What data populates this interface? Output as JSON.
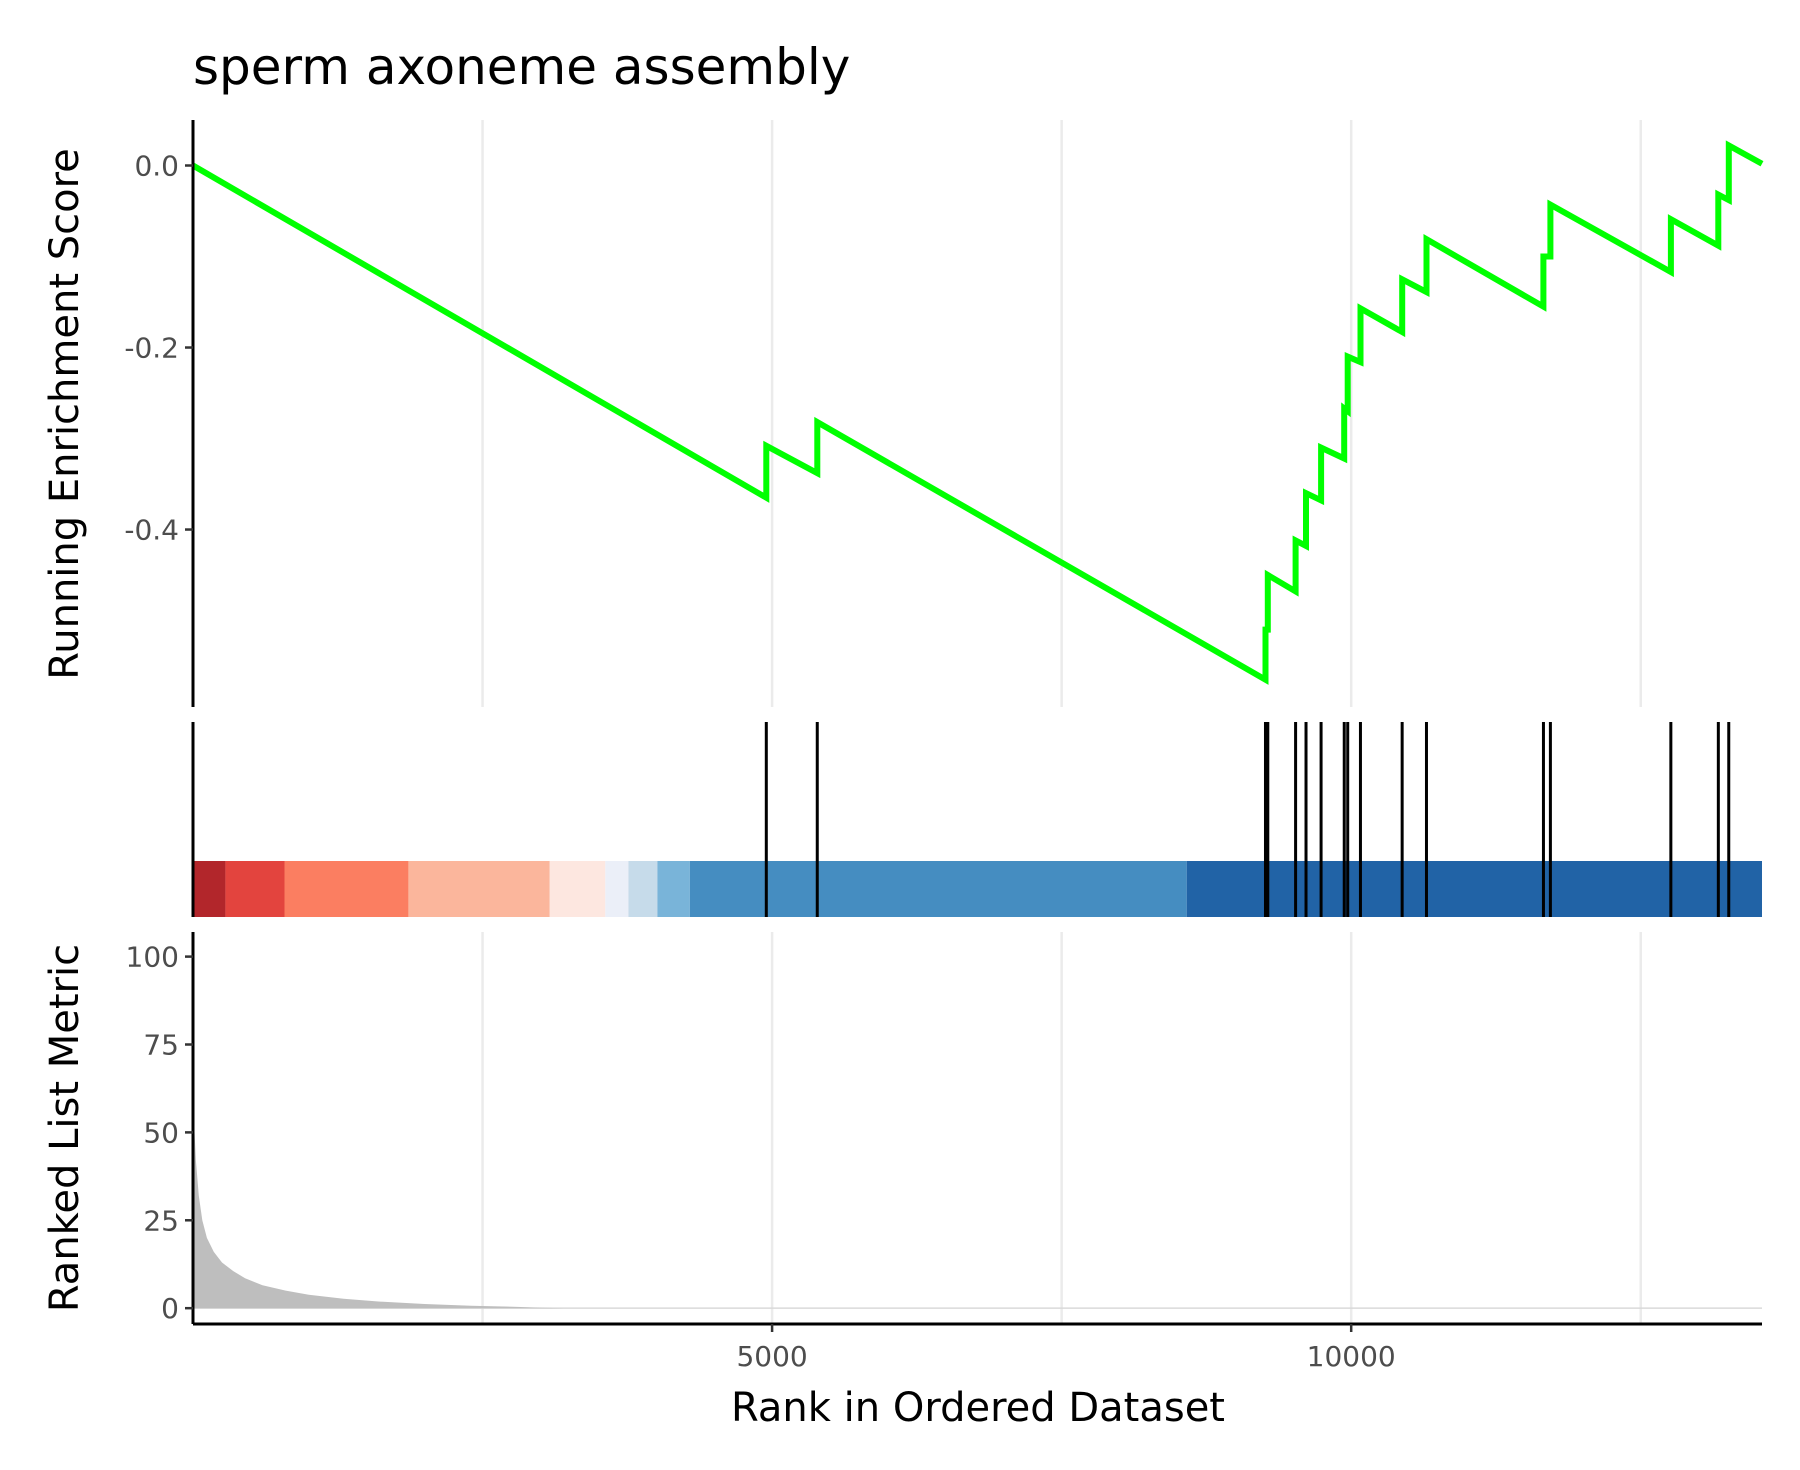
{
  "chart_data": {
    "type": "line",
    "title": "sperm axoneme assembly",
    "xlabel": "Rank in Ordered Dataset",
    "xlim": [
      0,
      13547
    ],
    "x_ticks": [
      5000,
      10000
    ],
    "x_tick_labels": [
      "5000",
      "10000"
    ],
    "grid": "vertical major",
    "panels": [
      {
        "name": "running_enrichment",
        "ylabel": "Running Enrichment Score",
        "ylim": [
          -0.595,
          0.05
        ],
        "y_ticks": [
          0.0,
          -0.2,
          -0.4
        ],
        "y_tick_labels": [
          "0.0",
          "-0.2",
          "-0.4"
        ],
        "line_color": "#00ff00",
        "series": [
          {
            "x": [
              0,
              4950,
              4950,
              5390,
              5390,
              9260,
              9260,
              9280,
              9280,
              9520,
              9520,
              9610,
              9610,
              9740,
              9740,
              9940,
              9940,
              9970,
              9970,
              10080,
              10080,
              10440,
              10440,
              10650,
              10650,
              11660,
              11660,
              11720,
              11720,
              12760,
              12760,
              13170,
              13170,
              13260,
              13260,
              13547
            ],
            "y": [
              0.0,
              -0.365,
              -0.308,
              -0.338,
              -0.282,
              -0.565,
              -0.51,
              -0.51,
              -0.45,
              -0.468,
              -0.412,
              -0.418,
              -0.36,
              -0.368,
              -0.31,
              -0.322,
              -0.267,
              -0.27,
              -0.21,
              -0.216,
              -0.157,
              -0.183,
              -0.125,
              -0.139,
              -0.081,
              -0.155,
              -0.1,
              -0.1,
              -0.043,
              -0.117,
              -0.059,
              -0.088,
              -0.032,
              -0.038,
              0.022,
              0.002
            ]
          }
        ]
      },
      {
        "name": "gene_hits",
        "hits": [
          4950,
          5390,
          9260,
          9280,
          9520,
          9610,
          9740,
          9940,
          9970,
          10080,
          10440,
          10650,
          11660,
          11720,
          12760,
          13170,
          13260
        ],
        "color_bands": [
          {
            "from": 0,
            "to": 280,
            "color": "#b2262b"
          },
          {
            "from": 280,
            "to": 790,
            "color": "#e3443e"
          },
          {
            "from": 790,
            "to": 1860,
            "color": "#fb7e61"
          },
          {
            "from": 1860,
            "to": 3080,
            "color": "#fbb69c"
          },
          {
            "from": 3080,
            "to": 3560,
            "color": "#fde7e0"
          },
          {
            "from": 3560,
            "to": 3760,
            "color": "#ebeff8"
          },
          {
            "from": 3760,
            "to": 4010,
            "color": "#c6dbea"
          },
          {
            "from": 4010,
            "to": 4290,
            "color": "#79b4d9"
          },
          {
            "from": 4290,
            "to": 8580,
            "color": "#458dc1"
          },
          {
            "from": 8580,
            "to": 13547,
            "color": "#2163a6"
          }
        ]
      },
      {
        "name": "ranked_list_metric",
        "ylabel": "Ranked List Metric",
        "ylim": [
          -4.5,
          107
        ],
        "y_ticks": [
          0,
          25,
          50,
          75,
          100
        ],
        "y_tick_labels": [
          "0",
          "25",
          "50",
          "75",
          "100"
        ],
        "area_color": "#bebebe",
        "series": [
          {
            "x": [
              0,
              10,
              25,
              50,
              80,
              120,
              180,
              250,
              350,
              450,
              600,
              800,
              1000,
              1300,
              1600,
              2000,
              2400,
              2800,
              3000,
              3200,
              13547
            ],
            "y": [
              68,
              52,
              42,
              32,
              25,
              20,
              16,
              13,
              10.5,
              8.5,
              6.5,
              5,
              3.8,
              2.7,
              1.9,
              1.2,
              0.7,
              0.35,
              0.15,
              0,
              0
            ]
          }
        ]
      }
    ]
  }
}
